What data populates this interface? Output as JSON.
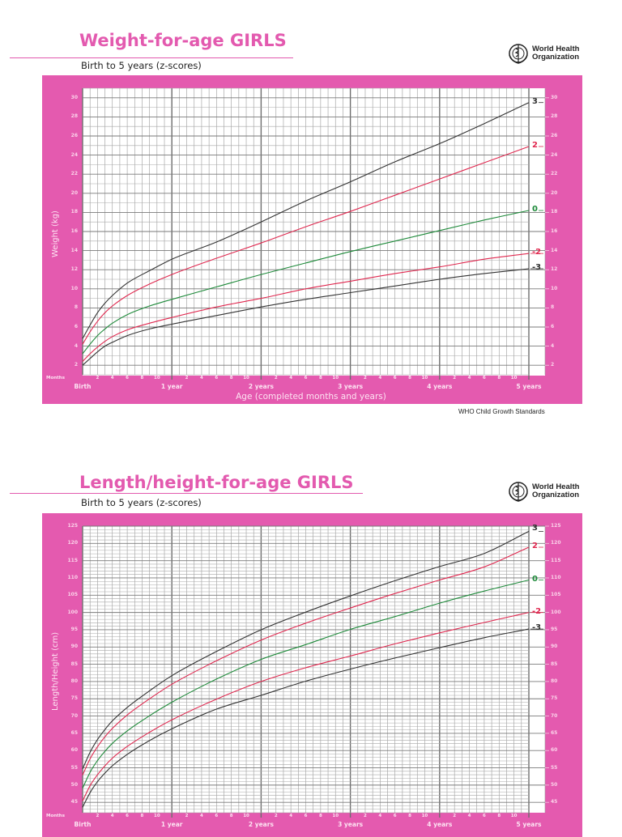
{
  "colors": {
    "pink": "#e45aaf",
    "grid": "#8a8a8a",
    "z3": "#333333",
    "z2": "#e0284f",
    "z0": "#1e8a3a"
  },
  "organization": {
    "line1": "World Health",
    "line2": "Organization",
    "icon": "who-emblem-icon"
  },
  "footer": "WHO Child Growth Standards",
  "x_axis": {
    "months_word": "Months",
    "month_ticks": [
      "2",
      "4",
      "6",
      "8",
      "10"
    ],
    "year_labels": [
      "Birth",
      "1 year",
      "2 years",
      "3 years",
      "4 years",
      "5 years"
    ],
    "title": "Age (completed months and years)"
  },
  "charts": [
    {
      "title": "Weight-for-age GIRLS",
      "subtitle": "Birth to 5 years (z-scores)",
      "ylabel": "Weight (kg)",
      "y_ticks": [
        "30",
        "28",
        "26",
        "24",
        "22",
        "20",
        "18",
        "16",
        "14",
        "12",
        "10",
        "8",
        "6",
        "4",
        "2"
      ],
      "z_labels": [
        "3",
        "2",
        "0",
        "-2",
        "-3"
      ]
    },
    {
      "title": "Length/height-for-age GIRLS",
      "subtitle": "Birth to 5 years (z-scores)",
      "ylabel": "Length/Height (cm)",
      "y_ticks": [
        "125",
        "120",
        "115",
        "110",
        "105",
        "100",
        "95",
        "90",
        "85",
        "80",
        "75",
        "70",
        "65",
        "60",
        "55",
        "50",
        "45"
      ],
      "z_labels": [
        "3",
        "2",
        "0",
        "-2",
        "-3"
      ]
    }
  ],
  "chart_data": [
    {
      "type": "line",
      "title": "Weight-for-age GIRLS",
      "subtitle": "Birth to 5 years (z-scores)",
      "xlabel": "Age (completed months and years)",
      "ylabel": "Weight (kg)",
      "xlim": [
        0,
        60
      ],
      "ylim": [
        1,
        31
      ],
      "grid": true,
      "x": [
        0,
        1,
        2,
        3,
        4,
        6,
        9,
        12,
        18,
        24,
        30,
        36,
        42,
        48,
        54,
        60
      ],
      "series": [
        {
          "name": "3",
          "color": "#333333",
          "values": [
            4.8,
            6.2,
            7.5,
            8.5,
            9.3,
            10.6,
            11.9,
            13.1,
            14.9,
            17.0,
            19.2,
            21.2,
            23.3,
            25.2,
            27.3,
            29.5
          ]
        },
        {
          "name": "2",
          "color": "#e0284f",
          "values": [
            4.2,
            5.5,
            6.6,
            7.5,
            8.2,
            9.3,
            10.5,
            11.5,
            13.2,
            14.8,
            16.5,
            18.1,
            19.8,
            21.5,
            23.2,
            24.9
          ]
        },
        {
          "name": "0",
          "color": "#1e8a3a",
          "values": [
            3.2,
            4.2,
            5.1,
            5.8,
            6.4,
            7.3,
            8.2,
            8.9,
            10.2,
            11.5,
            12.7,
            13.9,
            15.0,
            16.1,
            17.2,
            18.2
          ]
        },
        {
          "name": "-2",
          "color": "#e0284f",
          "values": [
            2.4,
            3.2,
            3.9,
            4.5,
            5.0,
            5.7,
            6.4,
            7.0,
            8.1,
            9.0,
            10.0,
            10.8,
            11.6,
            12.3,
            13.1,
            13.7
          ]
        },
        {
          "name": "-3",
          "color": "#333333",
          "values": [
            2.0,
            2.7,
            3.4,
            4.0,
            4.4,
            5.1,
            5.8,
            6.3,
            7.2,
            8.1,
            8.9,
            9.6,
            10.3,
            11.0,
            11.6,
            12.1
          ]
        }
      ]
    },
    {
      "type": "line",
      "title": "Length/height-for-age GIRLS",
      "subtitle": "Birth to 5 years (z-scores)",
      "xlabel": "Age (completed months and years)",
      "ylabel": "Length/Height (cm)",
      "xlim": [
        0,
        60
      ],
      "ylim": [
        42,
        125
      ],
      "grid": true,
      "x": [
        0,
        1,
        2,
        3,
        4,
        6,
        9,
        12,
        18,
        24,
        30,
        36,
        42,
        48,
        54,
        60
      ],
      "series": [
        {
          "name": "3",
          "color": "#333333",
          "values": [
            54.7,
            59.5,
            63.2,
            66.1,
            68.6,
            72.5,
            77.3,
            81.7,
            88.7,
            95.0,
            100.1,
            104.8,
            109.2,
            113.3,
            117.1,
            123.5
          ]
        },
        {
          "name": "2",
          "color": "#e0284f",
          "values": [
            52.9,
            57.6,
            61.1,
            64.0,
            66.4,
            70.3,
            75.0,
            79.2,
            86.0,
            92.0,
            96.9,
            101.3,
            105.5,
            109.4,
            113.2,
            118.9
          ]
        },
        {
          "name": "0",
          "color": "#1e8a3a",
          "values": [
            49.1,
            53.7,
            57.1,
            59.8,
            62.1,
            65.7,
            70.1,
            74.0,
            80.7,
            86.4,
            90.7,
            95.1,
            98.8,
            102.7,
            106.2,
            109.4
          ]
        },
        {
          "name": "-2",
          "color": "#e0284f",
          "values": [
            45.4,
            49.8,
            53.0,
            55.6,
            57.8,
            61.2,
            65.3,
            68.9,
            74.9,
            80.0,
            84.0,
            87.4,
            90.9,
            94.1,
            97.1,
            100.0
          ]
        },
        {
          "name": "-3",
          "color": "#333333",
          "values": [
            43.6,
            47.8,
            51.0,
            53.5,
            55.6,
            58.9,
            62.9,
            66.3,
            72.0,
            76.0,
            80.1,
            83.6,
            86.8,
            89.8,
            92.7,
            95.2
          ]
        }
      ]
    }
  ]
}
